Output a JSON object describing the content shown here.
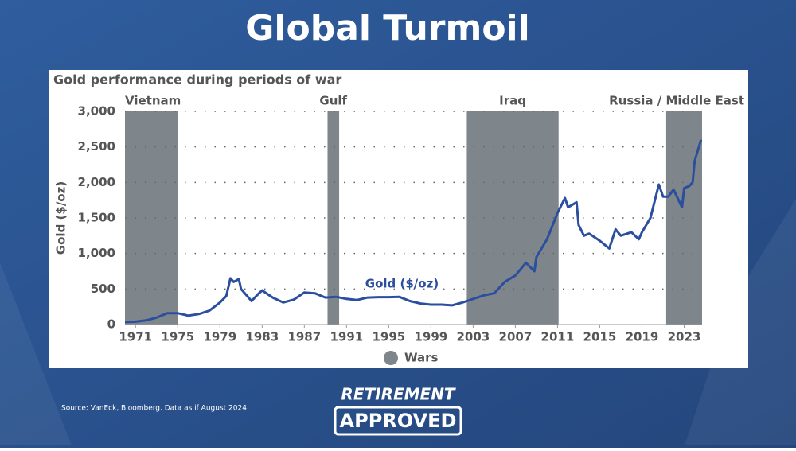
{
  "header": {
    "title": "Global Turmoil"
  },
  "chart_data": {
    "type": "line",
    "title": "Gold performance during periods of war",
    "y_label": "Gold ($/oz)",
    "xlim": [
      1970,
      2024.7
    ],
    "xticks": [
      1971,
      1975,
      1979,
      1983,
      1987,
      1991,
      1995,
      1999,
      2003,
      2007,
      2011,
      2015,
      2019,
      2023
    ],
    "ylim": [
      0,
      3000
    ],
    "yticks": [
      0,
      500,
      {
        "value": 1000,
        "label": "1,000"
      },
      {
        "value": 1500,
        "label": "1,500"
      },
      {
        "value": 2000,
        "label": "2,000"
      },
      {
        "value": 2500,
        "label": "2,500"
      },
      {
        "value": 3000,
        "label": "3,000"
      }
    ],
    "grid": true,
    "x": [
      1970,
      1971,
      1972,
      1973,
      1974,
      1975,
      1976,
      1977,
      1978,
      1979,
      1979.6,
      1980,
      1980.3,
      1980.8,
      1981,
      1982,
      1982.7,
      1983,
      1984,
      1985,
      1986,
      1987,
      1988,
      1989,
      1990,
      1991,
      1992,
      1993,
      1994,
      1995,
      1996,
      1997,
      1998,
      1999,
      2000,
      2001,
      2002,
      2003,
      2004,
      2005,
      2006,
      2007,
      2008,
      2008.8,
      2009,
      2010,
      2011,
      2011.7,
      2012,
      2012.8,
      2013,
      2013.5,
      2014,
      2015,
      2015.9,
      2016.5,
      2017,
      2018,
      2018.7,
      2019,
      2019.8,
      2020.6,
      2021,
      2021.5,
      2022,
      2022.8,
      2023,
      2023.5,
      2023.8,
      2024,
      2024.6
    ],
    "series": [
      {
        "name": "Gold ($/oz)",
        "color": "#2b4f9e",
        "values": [
          35,
          40,
          58,
          97,
          160,
          160,
          125,
          148,
          195,
          310,
          400,
          650,
          600,
          640,
          500,
          330,
          440,
          480,
          380,
          310,
          350,
          450,
          440,
          380,
          390,
          360,
          345,
          380,
          385,
          385,
          390,
          330,
          295,
          280,
          280,
          270,
          310,
          360,
          410,
          440,
          600,
          690,
          870,
          750,
          950,
          1200,
          1570,
          1780,
          1650,
          1720,
          1400,
          1250,
          1280,
          1180,
          1070,
          1340,
          1250,
          1300,
          1200,
          1300,
          1500,
          1970,
          1800,
          1800,
          1900,
          1650,
          1920,
          1950,
          2000,
          2300,
          2600
        ]
      }
    ],
    "wars": {
      "name": "Wars",
      "color": "#7f868b",
      "spans": [
        {
          "label": "Vietnam",
          "start": 1970,
          "end": 1975
        },
        {
          "label": "Gulf",
          "start": 1989.2,
          "end": 1990.3
        },
        {
          "label": "Iraq",
          "start": 2002.4,
          "end": 2011.1
        },
        {
          "label": "Russia / Middle East",
          "start": 2021.3,
          "end": 2024.7
        }
      ]
    }
  },
  "footer": {
    "source": "Source: VanEck, Bloomberg. Data as if August 2024",
    "logo_top": "RETIREMENT",
    "logo_bottom": "APPROVED"
  }
}
